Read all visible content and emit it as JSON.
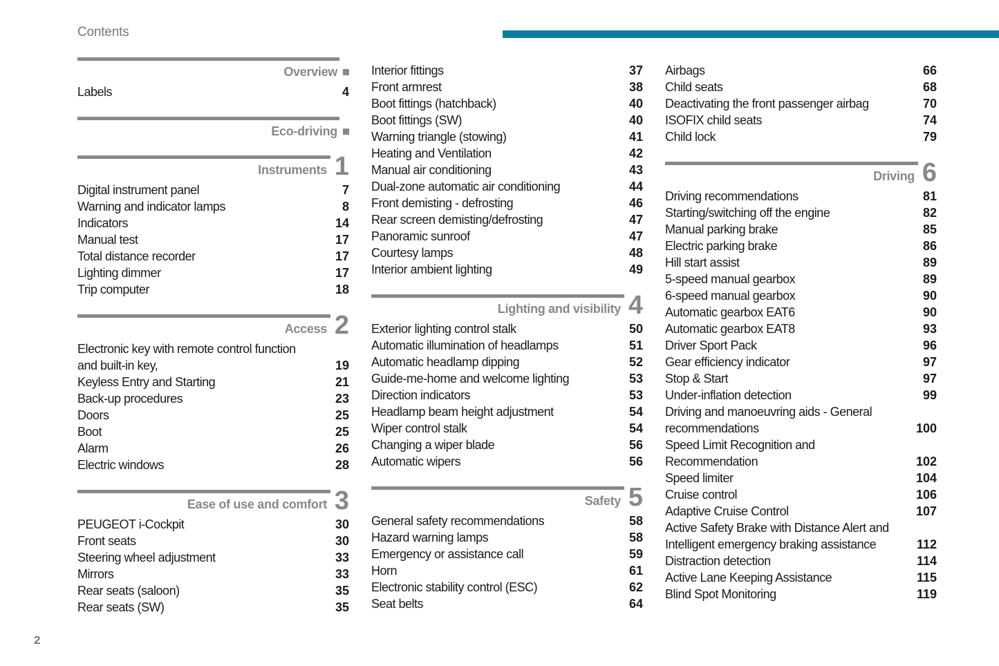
{
  "header": {
    "title": "Contents"
  },
  "footer": {
    "page_number": "2"
  },
  "colors": {
    "accent": "#0d7e9f",
    "section_gray": "#87888a",
    "text_ink": "#1a1a1a",
    "muted_gray": "#77787b"
  },
  "columns": [
    {
      "blocks": [
        {
          "type": "section",
          "label": "Overview",
          "marker": "square"
        },
        {
          "type": "items",
          "items": [
            {
              "label": "Labels",
              "page": "4"
            }
          ]
        },
        {
          "type": "section",
          "label": "Eco-driving",
          "marker": "square"
        },
        {
          "type": "section",
          "label": "Instruments",
          "num": "1"
        },
        {
          "type": "items",
          "items": [
            {
              "label": "Digital instrument panel",
              "page": "7"
            },
            {
              "label": "Warning and indicator lamps",
              "page": "8"
            },
            {
              "label": "Indicators",
              "page": "14"
            },
            {
              "label": "Manual test",
              "page": "17"
            },
            {
              "label": "Total distance recorder",
              "page": "17"
            },
            {
              "label": "Lighting dimmer",
              "page": "17"
            },
            {
              "label": "Trip computer",
              "page": "18"
            }
          ]
        },
        {
          "type": "section",
          "label": "Access",
          "num": "2"
        },
        {
          "type": "items",
          "items": [
            {
              "label": "Electronic key with remote control function\nand built-in key,",
              "page": "19"
            },
            {
              "label": "Keyless Entry and Starting",
              "page": "21"
            },
            {
              "label": "Back-up procedures",
              "page": "23"
            },
            {
              "label": "Doors",
              "page": "25"
            },
            {
              "label": "Boot",
              "page": "25"
            },
            {
              "label": "Alarm",
              "page": "26"
            },
            {
              "label": "Electric windows",
              "page": "28"
            }
          ]
        },
        {
          "type": "section",
          "label": "Ease of use and comfort",
          "num": "3"
        },
        {
          "type": "items",
          "items": [
            {
              "label": "PEUGEOT i-Cockpit",
              "page": "30"
            },
            {
              "label": "Front seats",
              "page": "30"
            },
            {
              "label": "Steering wheel adjustment",
              "page": "33"
            },
            {
              "label": "Mirrors",
              "page": "33"
            },
            {
              "label": "Rear seats (saloon)",
              "page": "35"
            },
            {
              "label": "Rear seats (SW)",
              "page": "35"
            }
          ]
        }
      ]
    },
    {
      "blocks": [
        {
          "type": "items",
          "items": [
            {
              "label": "Interior fittings",
              "page": "37"
            },
            {
              "label": "Front armrest",
              "page": "38"
            },
            {
              "label": "Boot fittings (hatchback)",
              "page": "40"
            },
            {
              "label": "Boot fittings (SW)",
              "page": "40"
            },
            {
              "label": "Warning triangle (stowing)",
              "page": "41"
            },
            {
              "label": "Heating and Ventilation",
              "page": "42"
            },
            {
              "label": "Manual air conditioning",
              "page": "43"
            },
            {
              "label": "Dual-zone automatic air conditioning",
              "page": "44"
            },
            {
              "label": "Front demisting - defrosting",
              "page": "46"
            },
            {
              "label": "Rear screen demisting/defrosting",
              "page": "47"
            },
            {
              "label": "Panoramic sunroof",
              "page": "47"
            },
            {
              "label": "Courtesy lamps",
              "page": "48"
            },
            {
              "label": "Interior ambient lighting",
              "page": "49"
            }
          ]
        },
        {
          "type": "section",
          "label": "Lighting and visibility",
          "num": "4"
        },
        {
          "type": "items",
          "items": [
            {
              "label": "Exterior lighting control stalk",
              "page": "50"
            },
            {
              "label": "Automatic illumination of headlamps",
              "page": "51"
            },
            {
              "label": "Automatic headlamp dipping",
              "page": "52"
            },
            {
              "label": "Guide-me-home and welcome lighting",
              "page": "53"
            },
            {
              "label": "Direction indicators",
              "page": "53"
            },
            {
              "label": "Headlamp beam height adjustment",
              "page": "54"
            },
            {
              "label": "Wiper control stalk",
              "page": "54"
            },
            {
              "label": "Changing a wiper blade",
              "page": "56"
            },
            {
              "label": "Automatic wipers",
              "page": "56"
            }
          ]
        },
        {
          "type": "section",
          "label": "Safety",
          "num": "5"
        },
        {
          "type": "items",
          "items": [
            {
              "label": "General safety recommendations",
              "page": "58"
            },
            {
              "label": "Hazard warning lamps",
              "page": "58"
            },
            {
              "label": "Emergency or assistance call",
              "page": "59"
            },
            {
              "label": "Horn",
              "page": "61"
            },
            {
              "label": "Electronic stability control (ESC)",
              "page": "62"
            },
            {
              "label": "Seat belts",
              "page": "64"
            }
          ]
        }
      ]
    },
    {
      "blocks": [
        {
          "type": "items",
          "items": [
            {
              "label": "Airbags",
              "page": "66"
            },
            {
              "label": "Child seats",
              "page": "68"
            },
            {
              "label": "Deactivating the front passenger airbag",
              "page": "70"
            },
            {
              "label": "ISOFIX child seats",
              "page": "74"
            },
            {
              "label": "Child lock",
              "page": "79"
            }
          ]
        },
        {
          "type": "section",
          "label": "Driving",
          "num": "6"
        },
        {
          "type": "items",
          "items": [
            {
              "label": "Driving recommendations",
              "page": "81"
            },
            {
              "label": "Starting/switching off the engine",
              "page": "82"
            },
            {
              "label": "Manual parking brake",
              "page": "85"
            },
            {
              "label": "Electric parking brake",
              "page": "86"
            },
            {
              "label": "Hill start assist",
              "page": "89"
            },
            {
              "label": "5-speed manual gearbox",
              "page": "89"
            },
            {
              "label": "6-speed manual gearbox",
              "page": "90"
            },
            {
              "label": "Automatic gearbox EAT6",
              "page": "90"
            },
            {
              "label": "Automatic gearbox EAT8",
              "page": "93"
            },
            {
              "label": "Driver Sport Pack",
              "page": "96"
            },
            {
              "label": "Gear efficiency indicator",
              "page": "97"
            },
            {
              "label": "Stop & Start",
              "page": "97"
            },
            {
              "label": "Under-inflation detection",
              "page": "99"
            },
            {
              "label": "Driving and manoeuvring aids - General\nrecommendations",
              "page": "100"
            },
            {
              "label": "Speed Limit Recognition and\nRecommendation",
              "page": "102"
            },
            {
              "label": "Speed limiter",
              "page": "104"
            },
            {
              "label": "Cruise control",
              "page": "106"
            },
            {
              "label": "Adaptive Cruise Control",
              "page": "107"
            },
            {
              "label": "Active Safety Brake with Distance Alert and\nIntelligent emergency braking assistance",
              "page": "112"
            },
            {
              "label": "Distraction detection",
              "page": "114"
            },
            {
              "label": "Active Lane Keeping Assistance",
              "page": "115"
            },
            {
              "label": "Blind Spot Monitoring",
              "page": "119"
            }
          ]
        }
      ]
    }
  ]
}
